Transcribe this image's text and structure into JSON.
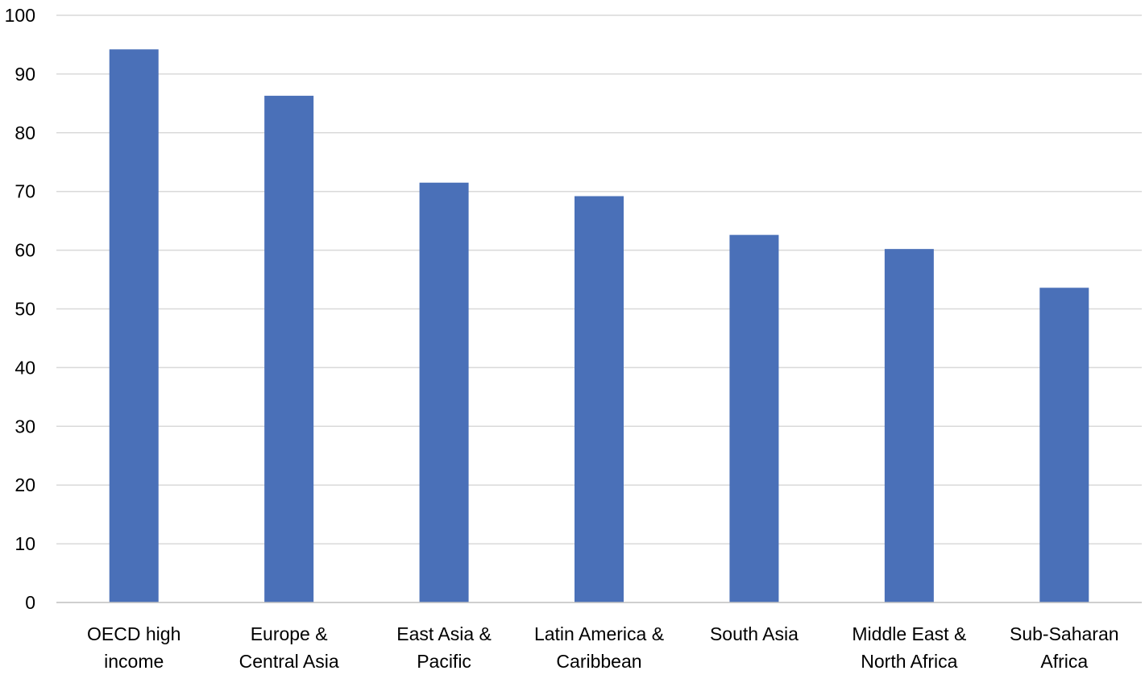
{
  "chart_data": {
    "type": "bar",
    "title": "",
    "xlabel": "",
    "ylabel": "",
    "ylim": [
      0,
      100
    ],
    "yticks": [
      0,
      10,
      20,
      30,
      40,
      50,
      60,
      70,
      80,
      90,
      100
    ],
    "grid": true,
    "legend": "none",
    "bar_color": "#4a70b8",
    "categories": [
      [
        "OECD high",
        "income"
      ],
      [
        "Europe &",
        "Central Asia"
      ],
      [
        "East Asia &",
        "Pacific"
      ],
      [
        "Latin America &",
        "Caribbean"
      ],
      [
        "South Asia"
      ],
      [
        "Middle East &",
        "North Africa"
      ],
      [
        "Sub-Saharan",
        "Africa"
      ]
    ],
    "values": [
      94.2,
      86.3,
      71.5,
      69.2,
      62.6,
      60.2,
      53.6
    ]
  }
}
